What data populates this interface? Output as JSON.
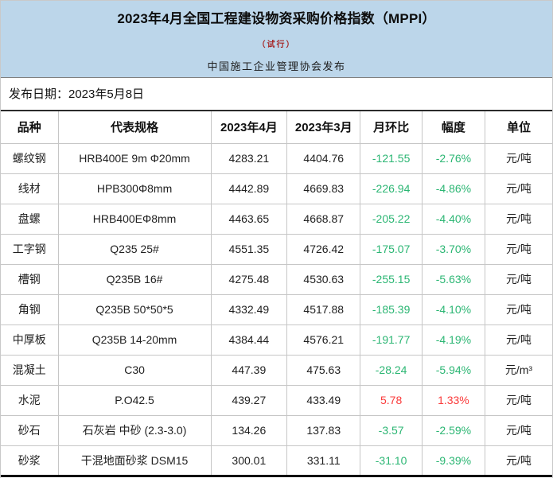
{
  "colors": {
    "header_bg": "#bcd6ea",
    "subtitle_red": "#a52525",
    "down_green": "#2bb673",
    "up_red": "#fa3b3b",
    "grid_line": "#c6c6c6"
  },
  "header": {
    "title": "2023年4月全国工程建设物资采购价格指数（MPPI）",
    "subtitle": "（试行）",
    "publisher": "中国施工企业管理协会发布"
  },
  "publish_date": "发布日期：2023年5月8日",
  "table": {
    "columns": [
      "品种",
      "代表规格",
      "2023年4月",
      "2023年3月",
      "月环比",
      "幅度",
      "单位"
    ],
    "rows": [
      {
        "variety": "螺纹钢",
        "spec": "HRB400E 9m Φ20mm",
        "april": "4283.21",
        "march": "4404.76",
        "mom": "-121.55",
        "pct": "-2.76%",
        "unit": "元/吨",
        "trend": "down"
      },
      {
        "variety": "线材",
        "spec": "HPB300Φ8mm",
        "april": "4442.89",
        "march": "4669.83",
        "mom": "-226.94",
        "pct": "-4.86%",
        "unit": "元/吨",
        "trend": "down"
      },
      {
        "variety": "盘螺",
        "spec": "HRB400EΦ8mm",
        "april": "4463.65",
        "march": "4668.87",
        "mom": "-205.22",
        "pct": "-4.40%",
        "unit": "元/吨",
        "trend": "down"
      },
      {
        "variety": "工字钢",
        "spec": "Q235 25#",
        "april": "4551.35",
        "march": "4726.42",
        "mom": "-175.07",
        "pct": "-3.70%",
        "unit": "元/吨",
        "trend": "down"
      },
      {
        "variety": "槽钢",
        "spec": "Q235B 16#",
        "april": "4275.48",
        "march": "4530.63",
        "mom": "-255.15",
        "pct": "-5.63%",
        "unit": "元/吨",
        "trend": "down"
      },
      {
        "variety": "角钢",
        "spec": "Q235B 50*50*5",
        "april": "4332.49",
        "march": "4517.88",
        "mom": "-185.39",
        "pct": "-4.10%",
        "unit": "元/吨",
        "trend": "down"
      },
      {
        "variety": "中厚板",
        "spec": "Q235B 14-20mm",
        "april": "4384.44",
        "march": "4576.21",
        "mom": "-191.77",
        "pct": "-4.19%",
        "unit": "元/吨",
        "trend": "down"
      },
      {
        "variety": "混凝土",
        "spec": "C30",
        "april": "447.39",
        "march": "475.63",
        "mom": "-28.24",
        "pct": "-5.94%",
        "unit": "元/m³",
        "trend": "down"
      },
      {
        "variety": "水泥",
        "spec": "P.O42.5",
        "april": "439.27",
        "march": "433.49",
        "mom": "5.78",
        "pct": "1.33%",
        "unit": "元/吨",
        "trend": "up"
      },
      {
        "variety": "砂石",
        "spec": "石灰岩 中砂 (2.3-3.0)",
        "april": "134.26",
        "march": "137.83",
        "mom": "-3.57",
        "pct": "-2.59%",
        "unit": "元/吨",
        "trend": "down"
      },
      {
        "variety": "砂浆",
        "spec": "干混地面砂浆 DSM15",
        "april": "300.01",
        "march": "331.11",
        "mom": "-31.10",
        "pct": "-9.39%",
        "unit": "元/吨",
        "trend": "down"
      }
    ]
  }
}
